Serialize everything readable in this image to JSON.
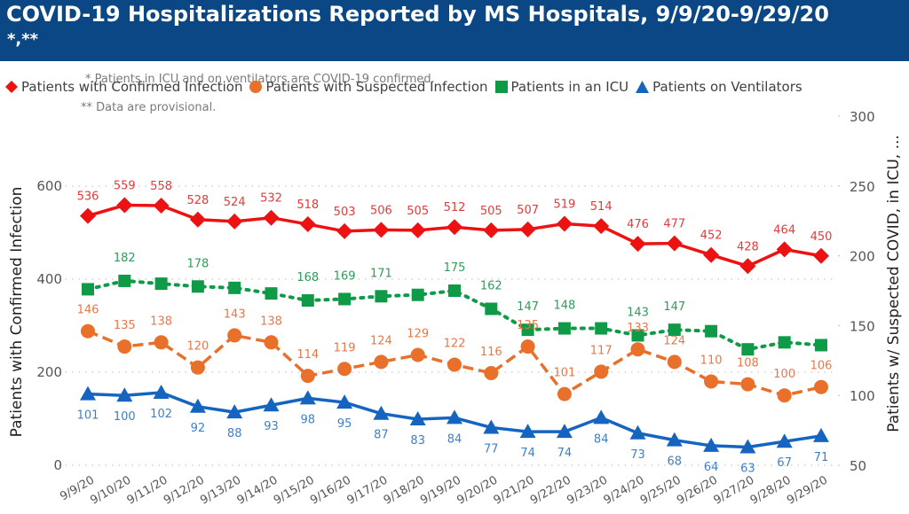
{
  "header": {
    "title": "COVID-19 Hospitalizations Reported by MS Hospitals, 9/9/20-9/29/20",
    "subtitle": "*,**"
  },
  "notes": {
    "note1": "*.Patients in ICU and on ventilators are COVID-19 confirmed.",
    "note2": "** Data are provisional."
  },
  "legend": [
    {
      "label": "Patients with Confirmed Infection",
      "icon": "diamond-marker-icon",
      "color": "#ee1111"
    },
    {
      "label": "Patients with Suspected Infection",
      "icon": "circle-marker-icon",
      "color": "#e8702a"
    },
    {
      "label": "Patients in an ICU",
      "icon": "square-marker-icon",
      "color": "#0f9a48"
    },
    {
      "label": "Patients on Ventilators",
      "icon": "triangle-marker-icon",
      "color": "#1565c0"
    }
  ],
  "chart_data": {
    "type": "line",
    "title": "COVID-19 Hospitalizations Reported by MS Hospitals, 9/9/20-9/29/20",
    "xlabel": "",
    "ylabel": "Patients with Confirmed Infection",
    "ylabel_right": "Patients w/ Suspected COVID, in ICU, ...",
    "ylim": [
      0,
      600
    ],
    "yticks": [
      0,
      200,
      400,
      600
    ],
    "ylim_right": [
      50,
      300
    ],
    "yticks_right": [
      50,
      100,
      150,
      200,
      250,
      300
    ],
    "grid": true,
    "legend_position": "top-left",
    "categories": [
      "9/9/20",
      "9/10/20",
      "9/11/20",
      "9/12/20",
      "9/13/20",
      "9/14/20",
      "9/15/20",
      "9/16/20",
      "9/17/20",
      "9/18/20",
      "9/19/20",
      "9/20/20",
      "9/21/20",
      "9/22/20",
      "9/23/20",
      "9/24/20",
      "9/25/20",
      "9/26/20",
      "9/27/20",
      "9/28/20",
      "9/29/20"
    ],
    "series": [
      {
        "name": "Patients with Confirmed Infection",
        "axis": "left",
        "color": "#ee1111",
        "marker": "diamond",
        "line": "solid",
        "values": [
          536,
          559,
          558,
          528,
          524,
          532,
          518,
          503,
          506,
          505,
          512,
          505,
          507,
          519,
          514,
          476,
          477,
          452,
          428,
          464,
          450
        ],
        "labels": [
          "536",
          "559",
          "558",
          "528",
          "524",
          "532",
          "518",
          "503",
          "506",
          "505",
          "512",
          "505",
          "507",
          "519",
          "514",
          "476",
          "477",
          "452",
          "428",
          "464",
          "450"
        ]
      },
      {
        "name": "Patients with Suspected Infection",
        "axis": "right",
        "color": "#e8702a",
        "marker": "circle",
        "line": "dashed",
        "values": [
          146,
          135,
          138,
          120,
          143,
          138,
          114,
          119,
          124,
          129,
          122,
          116,
          135,
          101,
          117,
          133,
          124,
          110,
          108,
          100,
          106
        ],
        "labels": [
          "146",
          "135",
          "138",
          "120",
          "143",
          "138",
          "114",
          "119",
          "124",
          "129",
          "122",
          "116",
          "135",
          "101",
          "117",
          "133",
          "124",
          "110",
          "108",
          "100",
          "106"
        ]
      },
      {
        "name": "Patients in an ICU",
        "axis": "right",
        "color": "#0f9a48",
        "marker": "square",
        "line": "dotted",
        "values": [
          176,
          182,
          180,
          178,
          177,
          173,
          168,
          169,
          171,
          172,
          175,
          162,
          147,
          148,
          148,
          143,
          147,
          146,
          133,
          138,
          136
        ],
        "labels": [
          "",
          "182",
          "",
          "178",
          "",
          "",
          "168",
          "169",
          "171",
          "",
          "175",
          "162",
          "147",
          "148",
          "",
          "143",
          "147",
          "",
          "",
          "",
          ""
        ]
      },
      {
        "name": "Patients on Ventilators",
        "axis": "right",
        "color": "#1565c0",
        "marker": "triangle",
        "line": "solid",
        "values": [
          101,
          100,
          102,
          92,
          88,
          93,
          98,
          95,
          87,
          83,
          84,
          77,
          74,
          74,
          84,
          73,
          68,
          64,
          63,
          67,
          71
        ],
        "labels": [
          "101",
          "100",
          "102",
          "92",
          "88",
          "93",
          "98",
          "95",
          "87",
          "83",
          "84",
          "77",
          "74",
          "74",
          "84",
          "73",
          "68",
          "64",
          "63",
          "67",
          "71"
        ]
      }
    ]
  }
}
